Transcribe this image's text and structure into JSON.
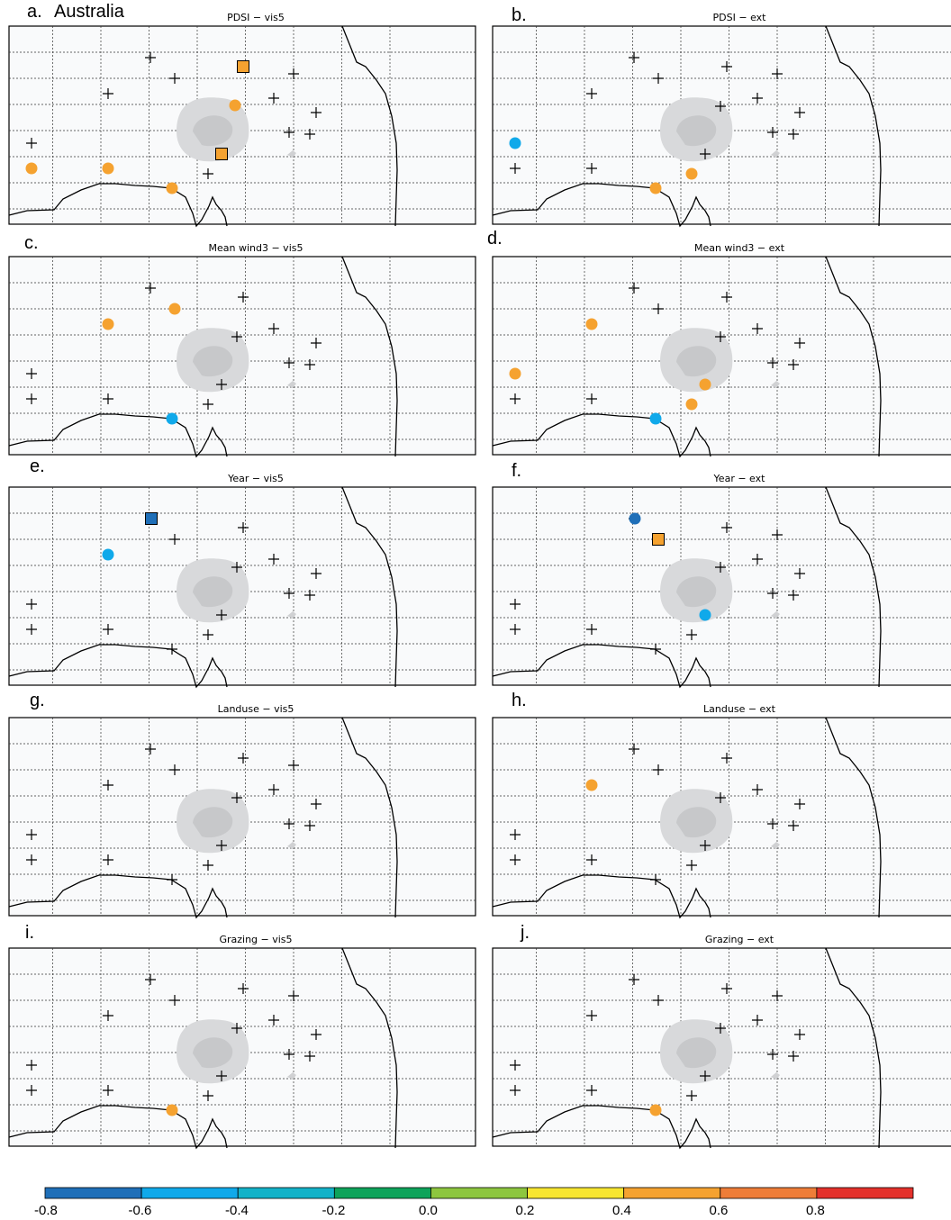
{
  "figure": {
    "region": "Australia"
  },
  "colorbar": {
    "colors": [
      "#1f6fb8",
      "#10a9ea",
      "#13b2c8",
      "#0ea35a",
      "#8dc63f",
      "#f7e631",
      "#f5a230",
      "#ee7d38",
      "#e4312b"
    ],
    "tick_labels": [
      "-0.8",
      "-0.6",
      "-0.4",
      "-0.2",
      "0.0",
      "0.2",
      "0.4",
      "0.6",
      "0.8"
    ]
  },
  "chart_data": [
    {
      "type": "scatter",
      "panel": "a.",
      "title": "PDSI − vis5",
      "points": [
        [
          1,
          0.5,
          "c"
        ],
        [
          2,
          0.45,
          "c"
        ],
        [
          3,
          0.6,
          "c"
        ],
        [
          5,
          0.55,
          "s"
        ],
        [
          6,
          0.45,
          "c"
        ],
        [
          7,
          0.45,
          "s"
        ]
      ]
    },
    {
      "type": "scatter",
      "panel": "b.",
      "title": "PDSI − ext",
      "points": [
        [
          0,
          -0.5,
          "c"
        ],
        [
          3,
          0.6,
          "c"
        ],
        [
          4,
          0.6,
          "c"
        ]
      ]
    },
    {
      "type": "scatter",
      "panel": "c.",
      "title": "Mean wind3 − vis5",
      "points": [
        [
          3,
          -0.5,
          "c"
        ],
        [
          14,
          0.6,
          "c"
        ],
        [
          15,
          0.45,
          "c"
        ]
      ]
    },
    {
      "type": "scatter",
      "panel": "d.",
      "title": "Mean wind3 − ext",
      "points": [
        [
          0,
          0.45,
          "c"
        ],
        [
          3,
          -0.5,
          "c"
        ],
        [
          4,
          0.6,
          "c"
        ],
        [
          5,
          0.45,
          "c"
        ],
        [
          15,
          0.45,
          "c"
        ]
      ]
    },
    {
      "type": "scatter",
      "panel": "e.",
      "title": "Year − vis5",
      "points": [
        [
          15,
          -0.5,
          "c"
        ],
        [
          16,
          -0.7,
          "s"
        ]
      ]
    },
    {
      "type": "scatter",
      "panel": "f.",
      "title": "Year − ext",
      "points": [
        [
          5,
          -0.5,
          "c"
        ],
        [
          14,
          0.5,
          "s"
        ],
        [
          16,
          -0.7,
          "c"
        ]
      ]
    },
    {
      "type": "scatter",
      "panel": "g.",
      "title": "Landuse − vis5",
      "points": []
    },
    {
      "type": "scatter",
      "panel": "h.",
      "title": "Landuse − ext",
      "points": [
        [
          15,
          0.45,
          "c"
        ]
      ]
    },
    {
      "type": "scatter",
      "panel": "i.",
      "title": "Grazing − vis5",
      "points": [
        [
          3,
          0.45,
          "c"
        ]
      ]
    },
    {
      "type": "scatter",
      "panel": "j.",
      "title": "Grazing − ext",
      "points": [
        [
          3,
          0.6,
          "c"
        ]
      ]
    }
  ]
}
